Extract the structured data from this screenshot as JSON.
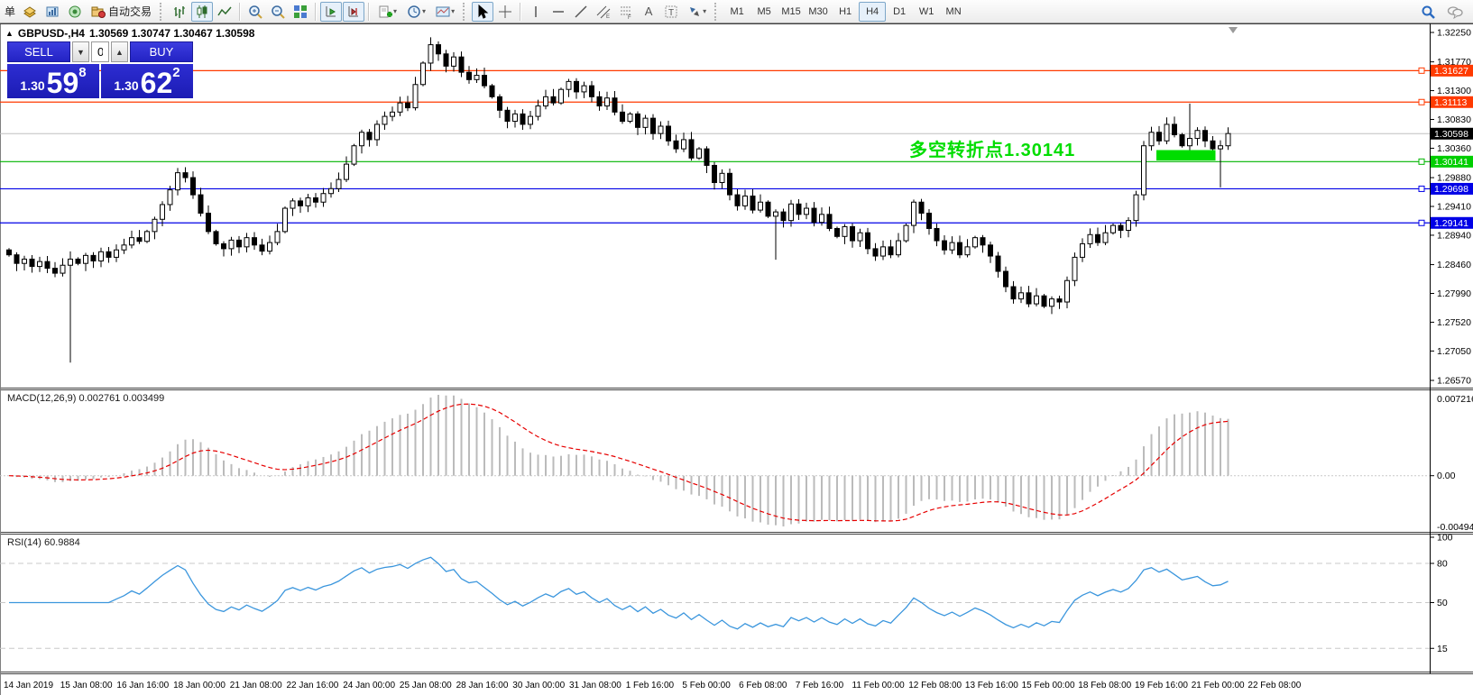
{
  "toolbar": {
    "left_text": "单",
    "autotrading_label": "自动交易",
    "timeframes": [
      "M1",
      "M5",
      "M15",
      "M30",
      "H1",
      "H4",
      "D1",
      "W1",
      "MN"
    ],
    "active_timeframe": "H4",
    "volume_down": "▼",
    "volume_up": "▲"
  },
  "chart": {
    "collapse_icon": "▲",
    "title": "GBPUSD-,H4",
    "ohlc_text": "1.30569 1.30747 1.30467 1.30598"
  },
  "trade_panel": {
    "sell_label": "SELL",
    "buy_label": "BUY",
    "volume": "0.10",
    "sell_price_prefix": "1.30",
    "sell_price_big": "59",
    "sell_price_sup": "8",
    "buy_price_prefix": "1.30",
    "buy_price_big": "62",
    "buy_price_sup": "2"
  },
  "annotation": {
    "text": "多空转折点1.30141",
    "color": "#00dd00"
  },
  "indicator_labels": {
    "macd": "MACD(12,26,9) 0.002761 0.003499",
    "rsi": "RSI(14) 60.9884"
  },
  "colors": {
    "bull_fill": "#ffffff",
    "bear_fill": "#000000",
    "candle_stroke": "#000000",
    "macd_hist": "#bbbbbb",
    "macd_signal": "#e60000",
    "rsi_line": "#3b96dd",
    "grid_dash": "#c8c8c8",
    "panel_blue": "#2b2bd0"
  },
  "chart_data": {
    "type": "candlestick",
    "symbol": "GBPUSD",
    "period": "H4",
    "main_axis_ticks": [
      "1.32250",
      "1.31770",
      "1.31300",
      "1.30830",
      "1.30360",
      "1.29880",
      "1.29410",
      "1.28940",
      "1.28460",
      "1.27990",
      "1.27520",
      "1.27050",
      "1.26570"
    ],
    "price_range": {
      "top": 1.3225,
      "bottom": 1.2657
    },
    "levels": [
      {
        "price": 1.31627,
        "label": "1.31627",
        "line_color": "#ff3a00",
        "tag_bg": "#ff3a00",
        "dash": "",
        "square": true
      },
      {
        "price": 1.31113,
        "label": "1.31113",
        "line_color": "#ff3a00",
        "tag_bg": "#ff3a00",
        "dash": "",
        "square": true
      },
      {
        "price": 1.30598,
        "label": "1.30598",
        "line_color": "#c0c0c0",
        "tag_bg": "#000000",
        "dash": "",
        "square": false
      },
      {
        "price": 1.30141,
        "label": "1.30141",
        "line_color": "#00b400",
        "tag_bg": "#00ce00",
        "dash": "",
        "square": true
      },
      {
        "price": 1.29698,
        "label": "1.29698",
        "line_color": "#0000e6",
        "tag_bg": "#0000e6",
        "dash": "",
        "square": true
      },
      {
        "price": 1.29141,
        "label": "1.29141",
        "line_color": "#0000e6",
        "tag_bg": "#0000e6",
        "dash": "",
        "square": true
      }
    ],
    "candles": {
      "first_open": 1.287,
      "closes": [
        1.2862,
        1.2848,
        1.2855,
        1.2843,
        1.2851,
        1.284,
        1.2832,
        1.2845,
        1.2855,
        1.2848,
        1.2861,
        1.2852,
        1.2867,
        1.2858,
        1.287,
        1.2878,
        1.289,
        1.2884,
        1.29,
        1.292,
        1.2944,
        1.2968,
        1.2996,
        1.2988,
        1.296,
        1.293,
        1.29,
        1.288,
        1.2872,
        1.2886,
        1.2875,
        1.289,
        1.2878,
        1.2868,
        1.2882,
        1.29,
        1.2938,
        1.295,
        1.2942,
        1.2955,
        1.2948,
        1.2962,
        1.297,
        1.2985,
        1.301,
        1.304,
        1.3062,
        1.305,
        1.3075,
        1.3088,
        1.3095,
        1.311,
        1.3102,
        1.314,
        1.3175,
        1.3205,
        1.319,
        1.317,
        1.3185,
        1.316,
        1.3148,
        1.3155,
        1.3138,
        1.312,
        1.3098,
        1.308,
        1.3092,
        1.3075,
        1.3088,
        1.3105,
        1.312,
        1.311,
        1.3132,
        1.3145,
        1.3128,
        1.3138,
        1.312,
        1.3105,
        1.3118,
        1.3095,
        1.308,
        1.3092,
        1.307,
        1.3085,
        1.306,
        1.3072,
        1.3048,
        1.3035,
        1.305,
        1.302,
        1.3035,
        1.3008,
        1.298,
        1.2995,
        1.296,
        1.2942,
        1.2958,
        1.2935,
        1.2948,
        1.2925,
        1.2932,
        1.2918,
        1.2945,
        1.2928,
        1.2938,
        1.2915,
        1.2928,
        1.2905,
        1.2892,
        1.2908,
        1.2885,
        1.2898,
        1.2872,
        1.286,
        1.2875,
        1.2862,
        1.2885,
        1.291,
        1.2948,
        1.293,
        1.2905,
        1.2885,
        1.287,
        1.2882,
        1.2862,
        1.2875,
        1.289,
        1.2878,
        1.286,
        1.2835,
        1.281,
        1.279,
        1.28,
        1.2782,
        1.2795,
        1.2778,
        1.279,
        1.2785,
        1.282,
        1.2858,
        1.288,
        1.2895,
        1.2882,
        1.2898,
        1.291,
        1.2902,
        1.2918,
        1.296,
        1.304,
        1.3062,
        1.3048,
        1.3075,
        1.3058,
        1.304,
        1.3052,
        1.3065,
        1.3048,
        1.3035,
        1.304,
        1.306
      ],
      "wick_overrides": {
        "8": {
          "low": 1.2686
        },
        "55": {
          "high": 1.3217
        },
        "100": {
          "low": 1.2854
        },
        "154": {
          "high": 1.3109
        },
        "158": {
          "low": 1.2972
        }
      }
    },
    "highlight_box": {
      "candle_from": 150,
      "candle_to": 157,
      "price_top": 1.3033,
      "price_bottom": 1.3016,
      "color": "#00dd00"
    },
    "macd": {
      "params": [
        12,
        26,
        9
      ],
      "axis_ticks": [
        "0.007216",
        "0.00",
        "-0.004943"
      ],
      "current_values": [
        0.002761,
        0.003499
      ]
    },
    "rsi": {
      "params": [
        14
      ],
      "axis_ticks": [
        "100",
        "80",
        "50",
        "15"
      ],
      "levels": [
        80,
        50,
        15
      ],
      "current_value": 60.9884
    },
    "time_axis": [
      "14 Jan 2019",
      "15 Jan 08:00",
      "16 Jan 16:00",
      "18 Jan 00:00",
      "21 Jan 08:00",
      "22 Jan 16:00",
      "24 Jan 00:00",
      "25 Jan 08:00",
      "28 Jan 16:00",
      "30 Jan 00:00",
      "31 Jan 08:00",
      "1 Feb 16:00",
      "5 Feb 00:00",
      "6 Feb 08:00",
      "7 Feb 16:00",
      "11 Feb 00:00",
      "12 Feb 08:00",
      "13 Feb 16:00",
      "15 Feb 00:00",
      "18 Feb 08:00",
      "19 Feb 16:00",
      "21 Feb 00:00",
      "22 Feb 08:00"
    ]
  }
}
